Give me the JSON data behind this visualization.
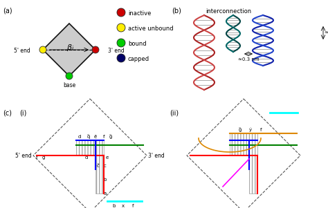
{
  "title_a": "(a)",
  "title_b": "(b)",
  "title_c": "(c)",
  "legend_items": [
    {
      "label": "inactive",
      "color": "#cc0000"
    },
    {
      "label": "active unbound",
      "color": "#ffee00"
    },
    {
      "label": "bound",
      "color": "#00cc00"
    },
    {
      "label": "capped",
      "color": "#000066"
    }
  ],
  "bg_color": "#ffffff",
  "diamond_fill": "#cccccc",
  "diamond_edge": "#111111"
}
